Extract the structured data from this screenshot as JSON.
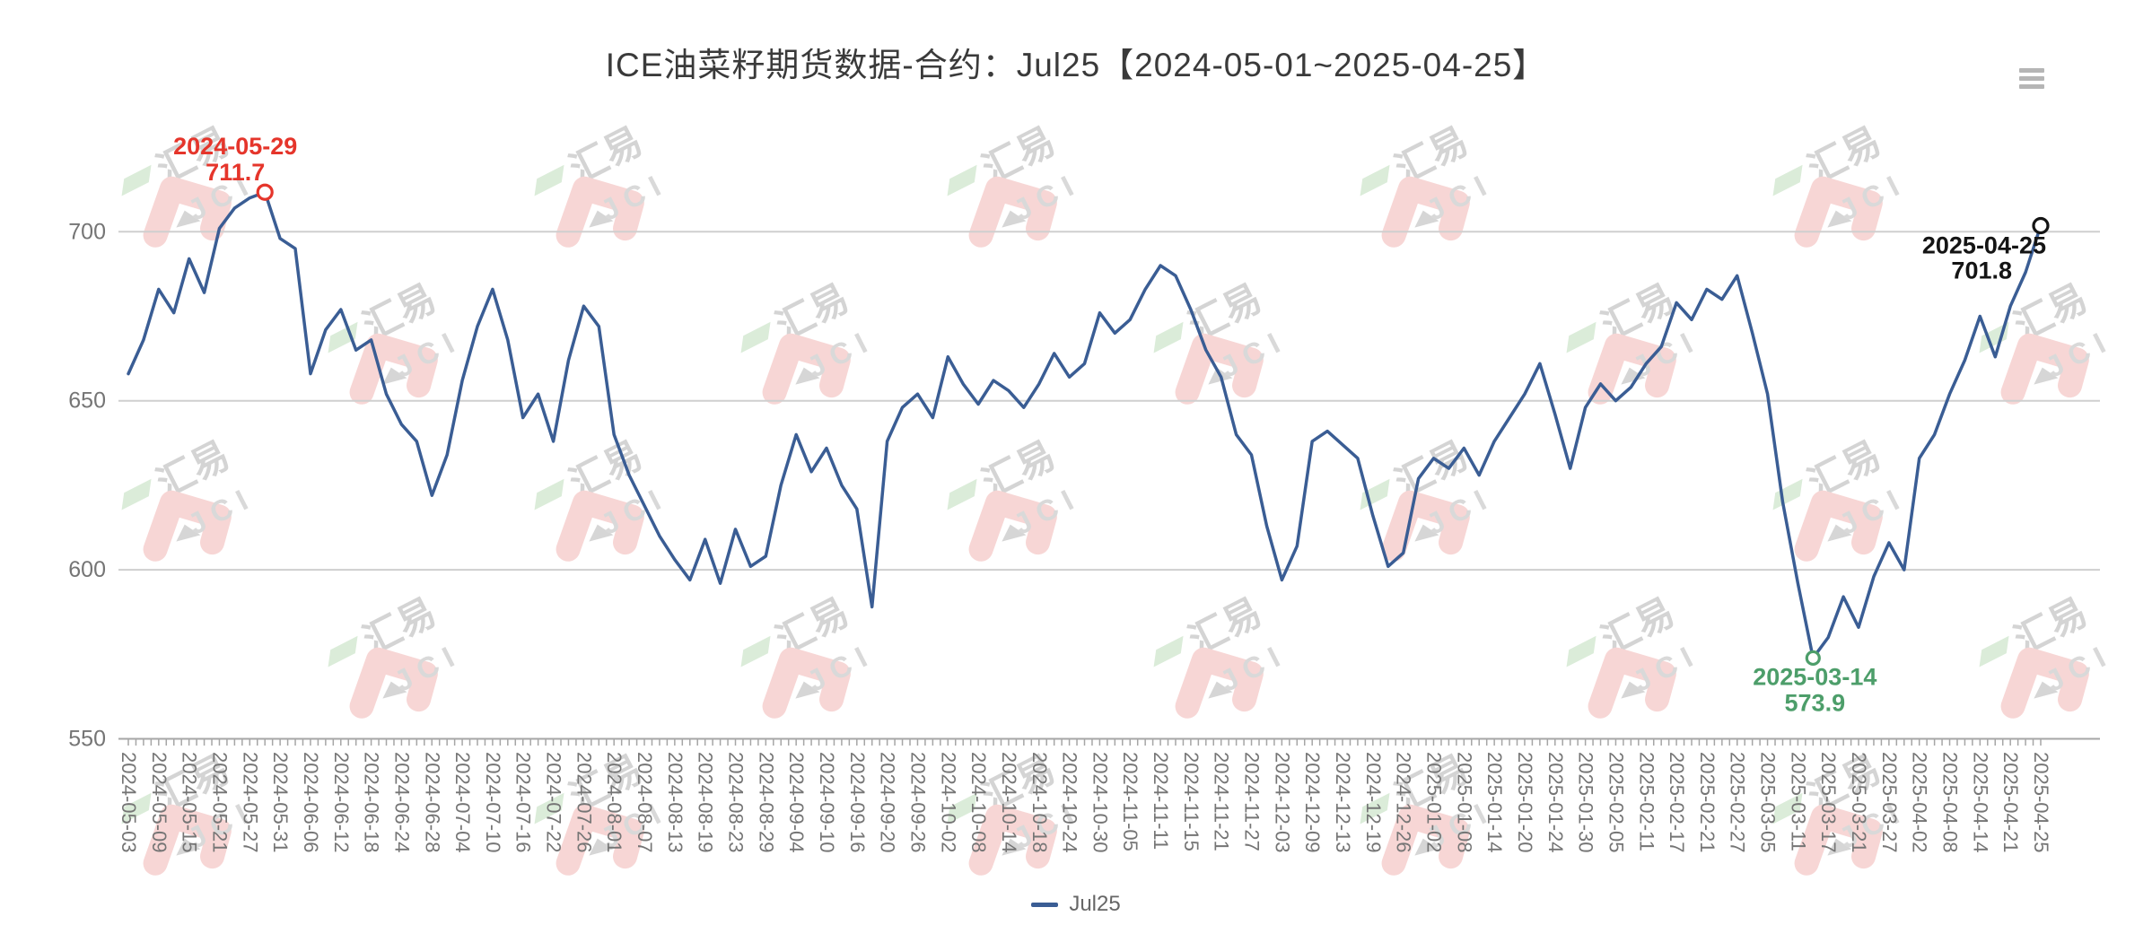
{
  "header": {
    "title": "ICE油菜籽期货数据-合约：Jul25【2024-05-01~2025-04-25】"
  },
  "legend": {
    "label": "Jul25"
  },
  "watermark": {
    "text_cn": "汇易",
    "text_en": "JCI"
  },
  "colors": {
    "line": "#3a5d94",
    "grid": "#cfcfcf",
    "axis": "#a6a6a6",
    "axis_text": "#757575",
    "max_annotation": "#e5352b",
    "min_annotation": "#4d9e6a",
    "last_annotation": "#141414"
  },
  "chart_data": {
    "type": "line",
    "title": "ICE油菜籽期货数据-合约：Jul25【2024-05-01~2025-04-25】",
    "series_name": "Jul25",
    "legend_position": "bottom",
    "grid": "horizontal-only",
    "y_ticks": [
      550,
      600,
      650,
      700
    ],
    "ylim": [
      550,
      715
    ],
    "x_labels": [
      "2024-05-03",
      "2024-05-09",
      "2024-05-15",
      "2024-05-21",
      "2024-05-27",
      "2024-05-31",
      "2024-06-06",
      "2024-06-12",
      "2024-06-18",
      "2024-06-24",
      "2024-06-28",
      "2024-07-04",
      "2024-07-10",
      "2024-07-16",
      "2024-07-22",
      "2024-07-26",
      "2024-08-01",
      "2024-08-07",
      "2024-08-13",
      "2024-08-19",
      "2024-08-23",
      "2024-08-29",
      "2024-09-04",
      "2024-09-10",
      "2024-09-16",
      "2024-09-20",
      "2024-09-26",
      "2024-10-02",
      "2024-10-08",
      "2024-10-14",
      "2024-10-18",
      "2024-10-24",
      "2024-10-30",
      "2024-11-05",
      "2024-11-11",
      "2024-11-15",
      "2024-11-21",
      "2024-11-27",
      "2024-12-03",
      "2024-12-09",
      "2024-12-13",
      "2024-12-19",
      "2024-12-26",
      "2025-01-02",
      "2025-01-08",
      "2025-01-14",
      "2025-01-20",
      "2025-01-24",
      "2025-01-30",
      "2025-02-05",
      "2025-02-11",
      "2025-02-17",
      "2025-02-21",
      "2025-02-27",
      "2025-03-05",
      "2025-03-11",
      "2025-03-17",
      "2025-03-21",
      "2025-03-27",
      "2025-04-02",
      "2025-04-08",
      "2025-04-14",
      "2025-04-21",
      "2025-04-25"
    ],
    "values": [
      658,
      668,
      683,
      676,
      692,
      682,
      701,
      707,
      710,
      711.7,
      698,
      695,
      658,
      671,
      677,
      665,
      668,
      652,
      643,
      638,
      622,
      634,
      656,
      672,
      683,
      668,
      645,
      652,
      638,
      662,
      678,
      672,
      640,
      628,
      619,
      610,
      603,
      597,
      609,
      596,
      612,
      601,
      604,
      625,
      640,
      629,
      636,
      625,
      618,
      589,
      638,
      648,
      652,
      645,
      663,
      655,
      649,
      656,
      653,
      648,
      655,
      664,
      657,
      661,
      676,
      670,
      674,
      683,
      690,
      687,
      677,
      665,
      657,
      640,
      634,
      613,
      597,
      607,
      638,
      641,
      637,
      633,
      616,
      601,
      605,
      627,
      633,
      630,
      636,
      628,
      638,
      645,
      652,
      661,
      646,
      630,
      648,
      655,
      650,
      654,
      661,
      666,
      679,
      674,
      683,
      680,
      687,
      670,
      652,
      620,
      596,
      573.9,
      580,
      592,
      583,
      598,
      608,
      600,
      633,
      640,
      652,
      662,
      675,
      663,
      678,
      688,
      701.8
    ],
    "annotations": {
      "max": {
        "date": "2024-05-29",
        "value": 711.7,
        "index": 9
      },
      "min": {
        "date": "2025-03-14",
        "value": 573.9,
        "index": 111
      },
      "last": {
        "date": "2025-04-25",
        "value": 701.8,
        "index": 126
      }
    }
  }
}
